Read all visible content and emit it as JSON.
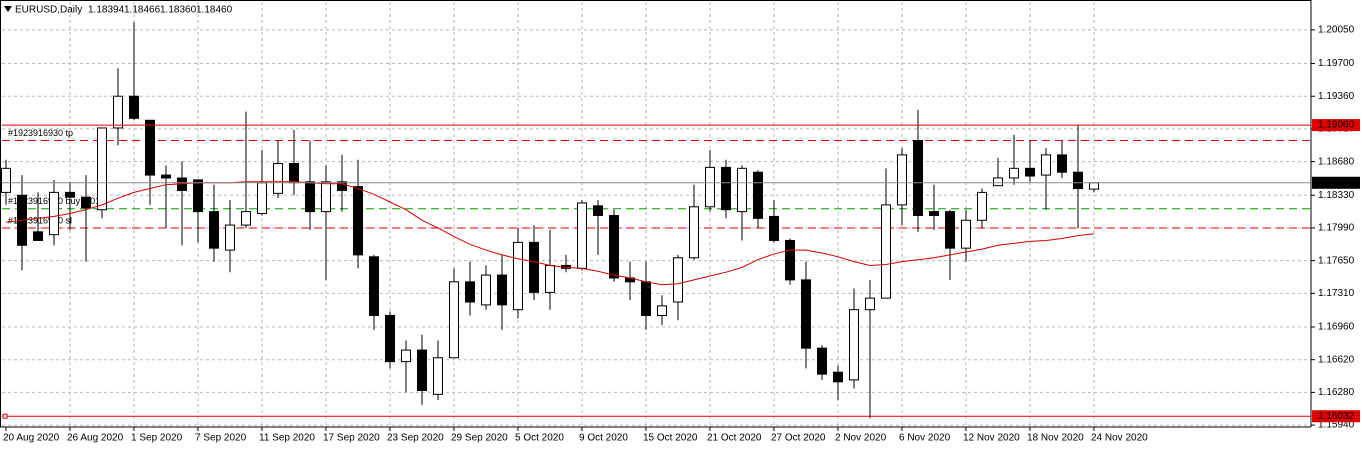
{
  "chart_data": {
    "type": "candlestick",
    "header": {
      "symbol": "EURUSD,Daily",
      "prices": [
        "1.18394",
        "1.18466",
        "1.18360",
        "1.18460"
      ]
    },
    "categories": [
      "20 Aug 2020",
      null,
      null,
      null,
      "26 Aug 2020",
      null,
      null,
      null,
      "1 Sep 2020",
      null,
      null,
      null,
      "7 Sep 2020",
      null,
      null,
      null,
      "11 Sep 2020",
      null,
      null,
      null,
      "17 Sep 2020",
      null,
      null,
      null,
      "23 Sep 2020",
      null,
      null,
      null,
      "29 Sep 2020",
      null,
      null,
      null,
      "5 Oct 2020",
      null,
      null,
      null,
      "9 Oct 2020",
      null,
      null,
      null,
      "15 Oct 2020",
      null,
      null,
      null,
      "21 Oct 2020",
      null,
      null,
      null,
      "27 Oct 2020",
      null,
      null,
      null,
      "2 Nov 2020",
      null,
      null,
      null,
      "6 Nov 2020",
      null,
      null,
      null,
      "12 Nov 2020",
      null,
      null,
      null,
      "18 Nov 2020",
      null,
      null,
      null,
      "24 Nov 2020"
    ],
    "open": [
      1.1836,
      1.1833,
      1.1795,
      1.1792,
      1.1836,
      1.1831,
      1.1818,
      1.1903,
      1.1936,
      1.1911,
      1.1854,
      1.1851,
      1.1849,
      1.1816,
      1.1776,
      1.1802,
      1.1814,
      1.1835,
      1.1866,
      1.1847,
      1.1816,
      1.1847,
      1.1842,
      1.1769,
      1.1708,
      1.166,
      1.1672,
      1.1626,
      1.1664,
      1.1743,
      1.1719,
      1.175,
      1.1714,
      1.1784,
      1.1732,
      1.176,
      1.1757,
      1.1822,
      1.1812,
      1.1747,
      1.1743,
      1.1708,
      1.1722,
      1.1768,
      1.1821,
      1.1862,
      1.1816,
      1.1857,
      1.1811,
      1.1786,
      1.1745,
      1.1674,
      1.1649,
      1.1641,
      1.1714,
      1.1726,
      1.1823,
      1.189,
      1.1816,
      1.1816,
      1.1778,
      1.1807,
      1.1843,
      1.1851,
      1.1861,
      1.1854,
      1.1875,
      1.1857,
      1.18394
    ],
    "high": [
      1.187,
      1.1854,
      1.1836,
      1.1849,
      1.1847,
      1.1854,
      1.1903,
      1.1965,
      1.2013,
      1.1911,
      1.1864,
      1.1868,
      1.1849,
      1.1844,
      1.1828,
      1.192,
      1.188,
      1.189,
      1.1901,
      1.189,
      1.1864,
      1.1875,
      1.187,
      1.1771,
      1.1712,
      1.1682,
      1.1688,
      1.1682,
      1.1757,
      1.1764,
      1.176,
      1.1771,
      1.1799,
      1.1802,
      1.1797,
      1.1771,
      1.1828,
      1.1828,
      1.1818,
      1.1764,
      1.1764,
      1.1729,
      1.1771,
      1.1844,
      1.188,
      1.187,
      1.1864,
      1.1859,
      1.1828,
      1.1788,
      1.1764,
      1.1677,
      1.1656,
      1.1736,
      1.1745,
      1.1861,
      1.1882,
      1.1922,
      1.1844,
      1.1818,
      1.1818,
      1.184,
      1.1872,
      1.1896,
      1.189,
      1.1882,
      1.189,
      1.1906,
      1.18466
    ],
    "low": [
      1.1823,
      1.1755,
      1.1786,
      1.1781,
      1.1797,
      1.1764,
      1.1809,
      1.1885,
      1.1911,
      1.1823,
      1.1799,
      1.1781,
      1.1784,
      1.1764,
      1.1753,
      1.1799,
      1.1812,
      1.183,
      1.1833,
      1.1797,
      1.1745,
      1.1816,
      1.1757,
      1.1693,
      1.1653,
      1.1628,
      1.1615,
      1.162,
      1.1664,
      1.1708,
      1.1714,
      1.1693,
      1.1705,
      1.1724,
      1.1714,
      1.1753,
      1.1755,
      1.1771,
      1.1743,
      1.1724,
      1.1693,
      1.1698,
      1.1703,
      1.1766,
      1.1816,
      1.1809,
      1.1786,
      1.1799,
      1.1784,
      1.174,
      1.1653,
      1.1641,
      1.162,
      1.1632,
      1.1601,
      1.1726,
      1.1802,
      1.1795,
      1.1797,
      1.1745,
      1.1764,
      1.1799,
      1.1843,
      1.1844,
      1.1847,
      1.1818,
      1.1851,
      1.1799,
      1.1836
    ],
    "close": [
      1.1861,
      1.1781,
      1.1786,
      1.1836,
      1.1831,
      1.182,
      1.1903,
      1.1936,
      1.1913,
      1.1854,
      1.1851,
      1.1838,
      1.1816,
      1.1778,
      1.1802,
      1.1816,
      1.1846,
      1.1866,
      1.1846,
      1.1816,
      1.1847,
      1.1838,
      1.1771,
      1.1708,
      1.166,
      1.1672,
      1.163,
      1.1664,
      1.1743,
      1.1722,
      1.175,
      1.1719,
      1.1784,
      1.1732,
      1.176,
      1.1757,
      1.1825,
      1.1812,
      1.1747,
      1.1743,
      1.1708,
      1.1718,
      1.1768,
      1.1821,
      1.1862,
      1.1818,
      1.1861,
      1.1809,
      1.1786,
      1.1745,
      1.1674,
      1.1647,
      1.1639,
      1.1714,
      1.1726,
      1.1823,
      1.1875,
      1.1812,
      1.1812,
      1.1778,
      1.1807,
      1.1836,
      1.1851,
      1.1861,
      1.1853,
      1.1875,
      1.1857,
      1.184,
      1.1846
    ],
    "ma_values": [
      1.1805,
      1.1807,
      1.1809,
      1.1811,
      1.1814,
      1.1818,
      1.1823,
      1.183,
      1.1836,
      1.184,
      1.1844,
      1.1845,
      1.1846,
      1.1846,
      1.1846,
      1.1847,
      1.1847,
      1.1847,
      1.1847,
      1.1846,
      1.1845,
      1.1845,
      1.184,
      1.1834,
      1.1826,
      1.1818,
      1.1807,
      1.1799,
      1.179,
      1.1782,
      1.1776,
      1.1771,
      1.1767,
      1.1764,
      1.176,
      1.1758,
      1.1757,
      1.1754,
      1.175,
      1.1747,
      1.1743,
      1.174,
      1.1741,
      1.1745,
      1.1749,
      1.1753,
      1.1758,
      1.1766,
      1.1772,
      1.1776,
      1.1776,
      1.1773,
      1.1769,
      1.1764,
      1.176,
      1.1761,
      1.1764,
      1.1766,
      1.1768,
      1.1771,
      1.1774,
      1.1777,
      1.1781,
      1.1783,
      1.1785,
      1.1786,
      1.1788,
      1.1791,
      1.1793
    ],
    "ma_color": "#d00000",
    "up_color": "#ffffff",
    "down_color": "#000000",
    "ylim": [
      1.1592,
      1.2034
    ],
    "yticks": [
      {
        "value": 1.2005,
        "label": "1.20050"
      },
      {
        "value": 1.197,
        "label": "1.19700"
      },
      {
        "value": 1.1936,
        "label": "1.19360"
      },
      {
        "value": 1.1902,
        "label": "1.19020"
      },
      {
        "value": 1.1868,
        "label": "1.18680"
      },
      {
        "value": 1.1833,
        "label": "1.18330"
      },
      {
        "value": 1.1799,
        "label": "1.17990"
      },
      {
        "value": 1.1765,
        "label": "1.17650"
      },
      {
        "value": 1.1731,
        "label": "1.17310"
      },
      {
        "value": 1.1696,
        "label": "1.16960"
      },
      {
        "value": 1.1662,
        "label": "1.16620"
      },
      {
        "value": 1.1628,
        "label": "1.16280"
      },
      {
        "value": 1.1594,
        "label": "1.15940"
      }
    ],
    "grid": true,
    "levels": [
      {
        "value": 1.1906,
        "label": "1.19060",
        "color": "#e00000"
      },
      {
        "value": 1.1846,
        "label": "1.18460",
        "color": "#000000"
      },
      {
        "value": 1.16032,
        "label": "1.16032",
        "color": "#e00000"
      }
    ],
    "orders": [
      {
        "value": 1.189,
        "label": "#1923916930 tp",
        "color": "#e00000"
      },
      {
        "value": 1.1819,
        "label": "#1923916930 buy 1.01",
        "color": "#00a000"
      },
      {
        "value": 1.1799,
        "label": "#1923916930 sl",
        "color": "#e00000"
      }
    ]
  }
}
